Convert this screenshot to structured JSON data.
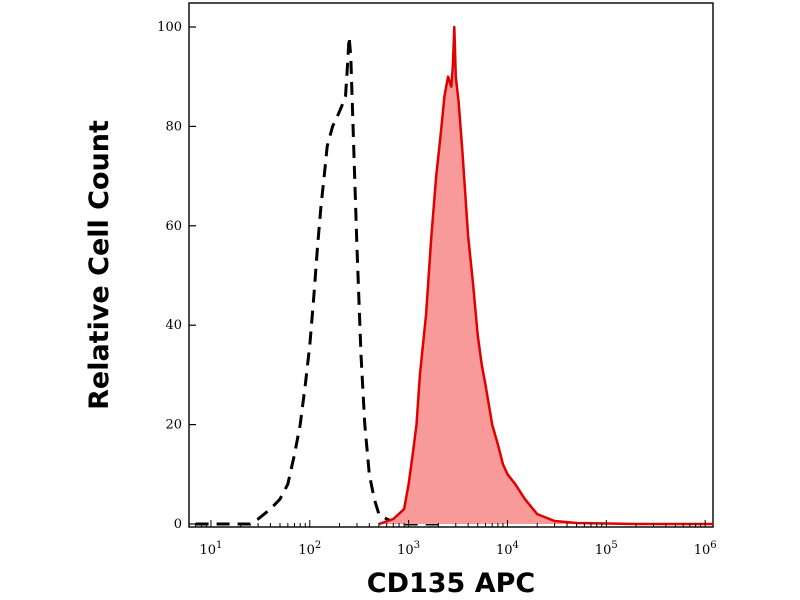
{
  "chart_data": {
    "type": "area",
    "xlabel": "CD135 APC",
    "ylabel": "Relative Cell Count",
    "x_scale": "log",
    "xlim": [
      6,
      1200000
    ],
    "ylim": [
      0,
      100
    ],
    "x_ticks": [
      {
        "value": 10,
        "base": "10",
        "exp": "1"
      },
      {
        "value": 100,
        "base": "10",
        "exp": "2"
      },
      {
        "value": 1000,
        "base": "10",
        "exp": "3"
      },
      {
        "value": 10000,
        "base": "10",
        "exp": "4"
      },
      {
        "value": 100000,
        "base": "10",
        "exp": "5"
      },
      {
        "value": 1000000,
        "base": "10",
        "exp": "6"
      }
    ],
    "y_ticks": [
      0,
      20,
      40,
      60,
      80,
      100
    ],
    "grid": false,
    "series": [
      {
        "style": "dashed",
        "color": "#000000",
        "fill": "none",
        "x": [
          7,
          15,
          25,
          30,
          40,
          50,
          60,
          70,
          80,
          90,
          100,
          110,
          120,
          130,
          140,
          150,
          170,
          190,
          210,
          230,
          240,
          250,
          260,
          280,
          300,
          330,
          360,
          400,
          450,
          500,
          600,
          800,
          1000,
          2000
        ],
        "y": [
          0,
          0,
          0,
          1,
          3,
          5,
          8,
          14,
          20,
          28,
          36,
          46,
          56,
          64,
          70,
          76,
          80,
          82,
          84,
          86,
          92,
          98,
          94,
          74,
          56,
          34,
          20,
          10,
          5,
          2,
          1,
          0,
          0,
          0
        ]
      },
      {
        "style": "solid",
        "color": "#e00000",
        "fill": "#f99a9a",
        "x": [
          500,
          700,
          900,
          1000,
          1100,
          1200,
          1300,
          1500,
          1700,
          1900,
          2100,
          2300,
          2500,
          2700,
          2800,
          2900,
          3000,
          3200,
          3500,
          4000,
          4500,
          5000,
          5500,
          6000,
          7000,
          8000,
          9000,
          10000,
          12000,
          15000,
          20000,
          30000,
          50000,
          100000,
          200000,
          500000,
          1200000
        ],
        "y": [
          0,
          1,
          3,
          8,
          14,
          20,
          30,
          42,
          58,
          70,
          78,
          86,
          90,
          88,
          92,
          100,
          90,
          85,
          75,
          58,
          48,
          38,
          32,
          28,
          20,
          16,
          12,
          10,
          8,
          5,
          2,
          0.6,
          0.2,
          0.1,
          0,
          0,
          0
        ]
      }
    ]
  }
}
